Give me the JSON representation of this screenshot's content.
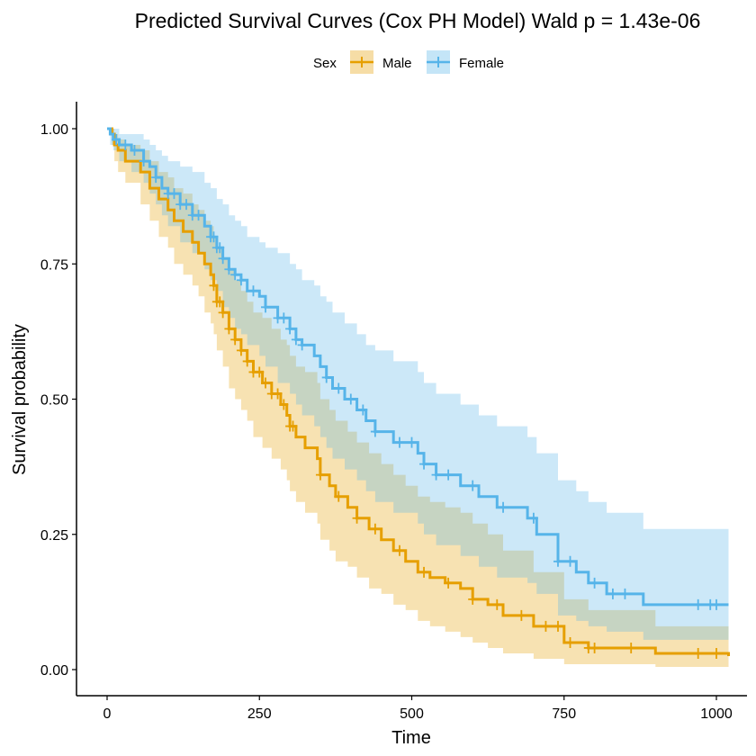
{
  "chart_data": {
    "type": "line",
    "title": "Predicted Survival Curves (Cox PH Model) Wald p = 1.43e-06",
    "xlabel": "Time",
    "ylabel": "Survival probability",
    "xlim": [
      0,
      1000
    ],
    "ylim": [
      0,
      1
    ],
    "x_ticks": [
      "0",
      "250",
      "500",
      "750",
      "1000"
    ],
    "y_ticks": [
      "0.00",
      "0.25",
      "0.50",
      "0.75",
      "1.00"
    ],
    "legend": {
      "title": "Sex",
      "position": "top"
    },
    "grid": false,
    "step": true,
    "series": [
      {
        "name": "Male",
        "color": "#E69F00",
        "ci_color": "#F4D6A1",
        "x": [
          0,
          8,
          12,
          18,
          30,
          55,
          70,
          85,
          100,
          110,
          125,
          140,
          150,
          160,
          170,
          175,
          180,
          190,
          200,
          210,
          220,
          230,
          240,
          255,
          270,
          285,
          295,
          300,
          310,
          325,
          345,
          350,
          365,
          375,
          395,
          410,
          430,
          450,
          470,
          490,
          510,
          530,
          555,
          580,
          600,
          625,
          650,
          700,
          750,
          790,
          900,
          1020
        ],
        "y": [
          1.0,
          0.99,
          0.97,
          0.96,
          0.94,
          0.92,
          0.89,
          0.87,
          0.85,
          0.83,
          0.81,
          0.79,
          0.77,
          0.75,
          0.73,
          0.71,
          0.68,
          0.66,
          0.63,
          0.61,
          0.59,
          0.57,
          0.55,
          0.53,
          0.51,
          0.49,
          0.47,
          0.45,
          0.43,
          0.41,
          0.39,
          0.36,
          0.34,
          0.32,
          0.3,
          0.28,
          0.26,
          0.24,
          0.22,
          0.2,
          0.18,
          0.17,
          0.16,
          0.15,
          0.13,
          0.12,
          0.1,
          0.08,
          0.05,
          0.04,
          0.03,
          0.025
        ],
        "ci_upper": [
          1.0,
          1.0,
          0.99,
          0.98,
          0.97,
          0.96,
          0.94,
          0.92,
          0.91,
          0.89,
          0.88,
          0.86,
          0.85,
          0.83,
          0.82,
          0.8,
          0.78,
          0.76,
          0.74,
          0.72,
          0.7,
          0.68,
          0.66,
          0.65,
          0.63,
          0.61,
          0.6,
          0.58,
          0.56,
          0.55,
          0.53,
          0.5,
          0.48,
          0.46,
          0.44,
          0.42,
          0.4,
          0.38,
          0.36,
          0.34,
          0.32,
          0.31,
          0.3,
          0.29,
          0.27,
          0.25,
          0.22,
          0.18,
          0.13,
          0.11,
          0.08,
          0.075
        ],
        "ci_lower": [
          1.0,
          0.97,
          0.94,
          0.92,
          0.9,
          0.86,
          0.83,
          0.8,
          0.78,
          0.75,
          0.73,
          0.71,
          0.69,
          0.66,
          0.64,
          0.62,
          0.59,
          0.56,
          0.52,
          0.5,
          0.48,
          0.46,
          0.43,
          0.41,
          0.39,
          0.37,
          0.35,
          0.33,
          0.31,
          0.29,
          0.27,
          0.24,
          0.22,
          0.2,
          0.19,
          0.17,
          0.15,
          0.14,
          0.12,
          0.11,
          0.09,
          0.08,
          0.07,
          0.06,
          0.05,
          0.04,
          0.03,
          0.02,
          0.01,
          0.01,
          0.005,
          0.005
        ],
        "censor_x": [
          175,
          180,
          185,
          190,
          200,
          210,
          220,
          230,
          240,
          250,
          260,
          270,
          280,
          290,
          300,
          305,
          350,
          380,
          410,
          440,
          480,
          520,
          560,
          600,
          640,
          680,
          720,
          740,
          760,
          790,
          800,
          860,
          970,
          1000
        ]
      },
      {
        "name": "Female",
        "color": "#56B4E9",
        "ci_color": "#C6E3F5",
        "x": [
          0,
          5,
          10,
          20,
          40,
          60,
          70,
          80,
          90,
          100,
          120,
          140,
          160,
          170,
          180,
          190,
          200,
          210,
          220,
          230,
          250,
          260,
          280,
          300,
          310,
          320,
          340,
          350,
          360,
          370,
          390,
          410,
          425,
          440,
          470,
          510,
          520,
          540,
          580,
          610,
          640,
          690,
          705,
          740,
          770,
          790,
          820,
          880,
          1020
        ],
        "y": [
          1.0,
          0.99,
          0.98,
          0.97,
          0.96,
          0.94,
          0.93,
          0.91,
          0.89,
          0.88,
          0.86,
          0.84,
          0.82,
          0.8,
          0.78,
          0.76,
          0.74,
          0.73,
          0.72,
          0.7,
          0.69,
          0.67,
          0.65,
          0.63,
          0.61,
          0.6,
          0.58,
          0.56,
          0.54,
          0.52,
          0.5,
          0.48,
          0.46,
          0.44,
          0.42,
          0.4,
          0.38,
          0.36,
          0.34,
          0.32,
          0.3,
          0.28,
          0.25,
          0.2,
          0.18,
          0.16,
          0.14,
          0.12,
          0.12
        ],
        "ci_upper": [
          1.0,
          1.0,
          1.0,
          0.99,
          0.99,
          0.98,
          0.97,
          0.96,
          0.95,
          0.94,
          0.93,
          0.92,
          0.9,
          0.89,
          0.87,
          0.86,
          0.84,
          0.83,
          0.82,
          0.8,
          0.79,
          0.78,
          0.77,
          0.75,
          0.74,
          0.72,
          0.71,
          0.69,
          0.68,
          0.66,
          0.64,
          0.62,
          0.6,
          0.59,
          0.57,
          0.55,
          0.53,
          0.51,
          0.49,
          0.47,
          0.45,
          0.43,
          0.4,
          0.35,
          0.33,
          0.31,
          0.29,
          0.26,
          0.26
        ],
        "ci_lower": [
          1.0,
          0.97,
          0.96,
          0.94,
          0.92,
          0.9,
          0.88,
          0.86,
          0.84,
          0.82,
          0.79,
          0.77,
          0.74,
          0.72,
          0.7,
          0.67,
          0.65,
          0.63,
          0.62,
          0.6,
          0.58,
          0.56,
          0.53,
          0.51,
          0.49,
          0.47,
          0.45,
          0.43,
          0.41,
          0.39,
          0.37,
          0.35,
          0.33,
          0.31,
          0.29,
          0.27,
          0.25,
          0.23,
          0.21,
          0.19,
          0.17,
          0.16,
          0.14,
          0.1,
          0.09,
          0.08,
          0.07,
          0.055,
          0.055
        ],
        "censor_x": [
          15,
          30,
          45,
          60,
          80,
          100,
          110,
          120,
          130,
          140,
          150,
          170,
          175,
          180,
          185,
          190,
          200,
          210,
          220,
          240,
          260,
          280,
          290,
          300,
          310,
          320,
          360,
          380,
          400,
          420,
          440,
          480,
          500,
          520,
          540,
          560,
          600,
          650,
          700,
          740,
          760,
          800,
          830,
          850,
          970,
          990,
          1000
        ]
      }
    ]
  }
}
